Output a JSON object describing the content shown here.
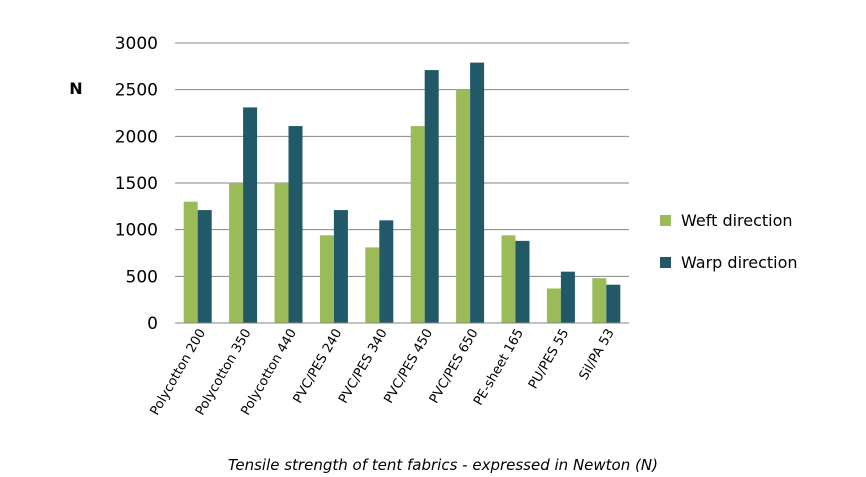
{
  "chart_data": {
    "type": "bar",
    "title": "",
    "caption": "Tensile strength of tent fabrics - expressed in Newton (N)",
    "xlabel": "",
    "ylabel": "N",
    "ylim": [
      0,
      3000
    ],
    "yticks": [
      0,
      500,
      1000,
      1500,
      2000,
      2500,
      3000
    ],
    "grid": true,
    "legend_position": "right",
    "categories": [
      "Polycotton 200",
      "Polycotton 350",
      "Polycotton 440",
      "PVC/PES 240",
      "PVC/PES 340",
      "PVC/PES 450",
      "PVC/PES 650",
      "PE-sheet 165",
      "PU/PES 55",
      "Sil/PA 53"
    ],
    "series": [
      {
        "name": "Weft direction",
        "color": "#9bbb59",
        "values": [
          1300,
          1500,
          1500,
          940,
          810,
          2110,
          2500,
          940,
          370,
          480
        ]
      },
      {
        "name": "Warp direction",
        "color": "#215968",
        "values": [
          1210,
          2310,
          2110,
          1210,
          1100,
          2710,
          2790,
          880,
          550,
          410
        ]
      }
    ]
  }
}
